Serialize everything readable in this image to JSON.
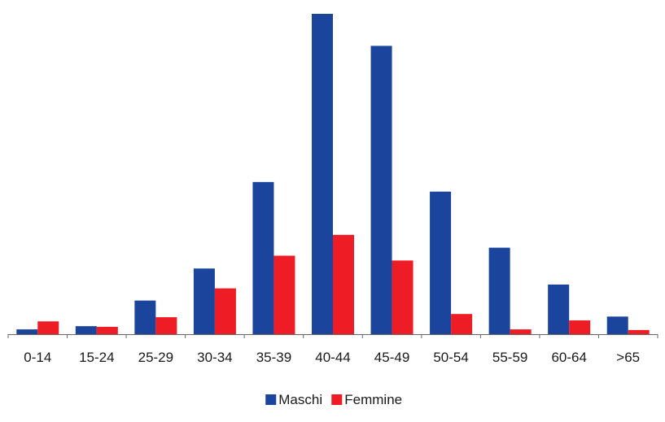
{
  "chart_data": {
    "type": "bar",
    "categories": [
      "0-14",
      "15-24",
      "25-29",
      "30-34",
      "35-39",
      "40-44",
      "45-49",
      "50-54",
      "55-59",
      "60-64",
      ">65"
    ],
    "series": [
      {
        "name": "Maschi",
        "color": "#1b449c",
        "values": [
          1.5,
          2.5,
          10.5,
          20.5,
          47.5,
          100,
          90,
          44.5,
          27,
          15.5,
          5.5
        ]
      },
      {
        "name": "Femmine",
        "color": "#ee1c25",
        "values": [
          4,
          2.3,
          5.3,
          14.3,
          24.5,
          31,
          23,
          6.3,
          1.5,
          4.3,
          1.3
        ]
      }
    ],
    "ylim": [
      0,
      100
    ],
    "grid": false,
    "legend_position": "bottom-center",
    "axis_color": "#666666"
  }
}
